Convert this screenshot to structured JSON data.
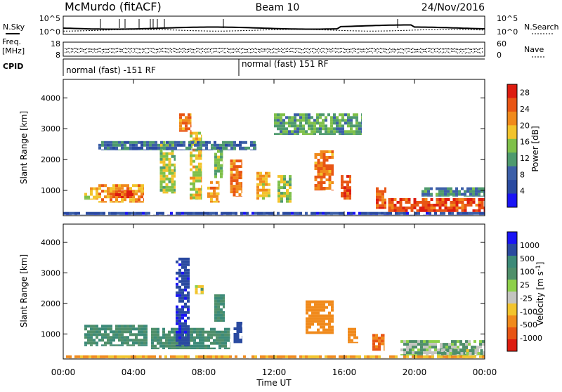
{
  "header": {
    "station": "McMurdo (fitACF)",
    "beam": "Beam 10",
    "date": "24/Nov/2016"
  },
  "top_panels": {
    "nsky_label": "N.Sky",
    "nsearch_label": "N.Search",
    "noise_ticks": [
      "10^5",
      "10^0"
    ],
    "freq_label_1": "Freq.",
    "freq_label_2": "[MHz]",
    "freq_ticks": [
      "18",
      "8"
    ],
    "nave_label": "Nave",
    "nave_ticks": [
      "60",
      "0"
    ],
    "cpid_label": "CPID",
    "cpid_segments": [
      {
        "label": "normal (fast) -151 RF",
        "start_hour": 0
      },
      {
        "label": "normal (fast) 151 RF",
        "start_hour": 10.3
      }
    ]
  },
  "colors": {
    "power_scale": [
      "#1a14f5",
      "#2a4aa0",
      "#3c5fa8",
      "#4e9a6e",
      "#7fc04a",
      "#f2c42c",
      "#f08a1c",
      "#e85514",
      "#dd1c10"
    ],
    "velocity_scale": [
      "#1a14f5",
      "#2a4aa0",
      "#3c8a78",
      "#4f8f6a",
      "#8ed04a",
      "#c4c4c0",
      "#f2c42c",
      "#f08a1c",
      "#e85514",
      "#dd1c10"
    ]
  },
  "chart_data": [
    {
      "type": "heatmap",
      "title": "",
      "xlabel": "Time UT",
      "ylabel": "Slant Range [km]",
      "xlim": [
        0,
        24
      ],
      "ylim": [
        180,
        4600
      ],
      "xticks": [
        "00:00",
        "04:00",
        "08:00",
        "12:00",
        "16:00",
        "20:00",
        "00:00"
      ],
      "yticks": [
        "1000",
        "2000",
        "3000",
        "4000"
      ],
      "colorbar": {
        "label": "Power [dB]",
        "ticks": [
          "4",
          "8",
          "12",
          "16",
          "20",
          "24",
          "28"
        ],
        "range": [
          0,
          30
        ]
      },
      "echo_regions": [
        {
          "t0": 0.0,
          "t1": 24.0,
          "r0": 200,
          "r1": 300,
          "value": 5
        },
        {
          "t0": 1.2,
          "t1": 2.0,
          "r0": 700,
          "r1": 1100,
          "value": 18
        },
        {
          "t0": 2.0,
          "t1": 4.6,
          "r0": 600,
          "r1": 1200,
          "value": 22
        },
        {
          "t0": 2.8,
          "t1": 4.0,
          "r0": 750,
          "r1": 1000,
          "value": 26
        },
        {
          "t0": 5.5,
          "t1": 6.4,
          "r0": 900,
          "r1": 2600,
          "value": 16
        },
        {
          "t0": 6.6,
          "t1": 7.3,
          "r0": 2900,
          "r1": 3500,
          "value": 24
        },
        {
          "t0": 7.2,
          "t1": 7.9,
          "r0": 700,
          "r1": 2900,
          "value": 18
        },
        {
          "t0": 8.2,
          "t1": 8.9,
          "r0": 600,
          "r1": 1300,
          "value": 22
        },
        {
          "t0": 8.6,
          "t1": 9.1,
          "r0": 1400,
          "r1": 2400,
          "value": 14
        },
        {
          "t0": 9.5,
          "t1": 10.2,
          "r0": 800,
          "r1": 2000,
          "value": 24
        },
        {
          "t0": 11.0,
          "t1": 11.8,
          "r0": 700,
          "r1": 1600,
          "value": 20
        },
        {
          "t0": 12.2,
          "t1": 13.0,
          "r0": 600,
          "r1": 1500,
          "value": 16
        },
        {
          "t0": 14.3,
          "t1": 15.4,
          "r0": 1000,
          "r1": 2300,
          "value": 24
        },
        {
          "t0": 15.8,
          "t1": 16.4,
          "r0": 700,
          "r1": 1500,
          "value": 26
        },
        {
          "t0": 17.8,
          "t1": 18.4,
          "r0": 400,
          "r1": 1100,
          "value": 26
        },
        {
          "t0": 18.5,
          "t1": 24.0,
          "r0": 300,
          "r1": 750,
          "value": 27
        },
        {
          "t0": 20.4,
          "t1": 24.0,
          "r0": 800,
          "r1": 1100,
          "value": 10
        },
        {
          "t0": 2.0,
          "t1": 11.0,
          "r0": 2300,
          "r1": 2600,
          "value": 8
        },
        {
          "t0": 12.0,
          "t1": 17.0,
          "r0": 2800,
          "r1": 3500,
          "value": 12
        }
      ]
    },
    {
      "type": "heatmap",
      "title": "",
      "xlabel": "Time UT",
      "ylabel": "Slant Range [km]",
      "xlim": [
        0,
        24
      ],
      "ylim": [
        180,
        4600
      ],
      "xticks": [
        "00:00",
        "04:00",
        "08:00",
        "12:00",
        "16:00",
        "20:00",
        "00:00"
      ],
      "yticks": [
        "1000",
        "2000",
        "3000",
        "4000"
      ],
      "colorbar": {
        "label": "Velocity [m s^-1]",
        "ticks": [
          "1000",
          "500",
          "100",
          "25",
          "-25",
          "-100",
          "-500",
          "-1000"
        ]
      },
      "echo_regions": [
        {
          "t0": 0.0,
          "t1": 24.0,
          "r0": 200,
          "r1": 300,
          "value": -100
        },
        {
          "t0": 1.2,
          "t1": 4.8,
          "r0": 600,
          "r1": 1300,
          "value": 200
        },
        {
          "t0": 5.0,
          "t1": 9.5,
          "r0": 500,
          "r1": 1200,
          "value": 200
        },
        {
          "t0": 6.4,
          "t1": 7.2,
          "r0": 600,
          "r1": 3500,
          "value": 700
        },
        {
          "t0": 7.5,
          "t1": 8.0,
          "r0": 2300,
          "r1": 2600,
          "value": 0
        },
        {
          "t0": 9.7,
          "t1": 10.2,
          "r0": 700,
          "r1": 1400,
          "value": 600
        },
        {
          "t0": 8.6,
          "t1": 9.2,
          "r0": 1400,
          "r1": 2300,
          "value": 200
        },
        {
          "t0": 13.8,
          "t1": 15.4,
          "r0": 1000,
          "r1": 2100,
          "value": -300
        },
        {
          "t0": 16.2,
          "t1": 16.8,
          "r0": 700,
          "r1": 1200,
          "value": -300
        },
        {
          "t0": 17.6,
          "t1": 18.3,
          "r0": 450,
          "r1": 1000,
          "value": -400
        },
        {
          "t0": 19.2,
          "t1": 24.0,
          "r0": 300,
          "r1": 800,
          "value": 60
        },
        {
          "t0": 21.5,
          "t1": 24.0,
          "r0": 300,
          "r1": 500,
          "value": 40
        }
      ]
    }
  ]
}
